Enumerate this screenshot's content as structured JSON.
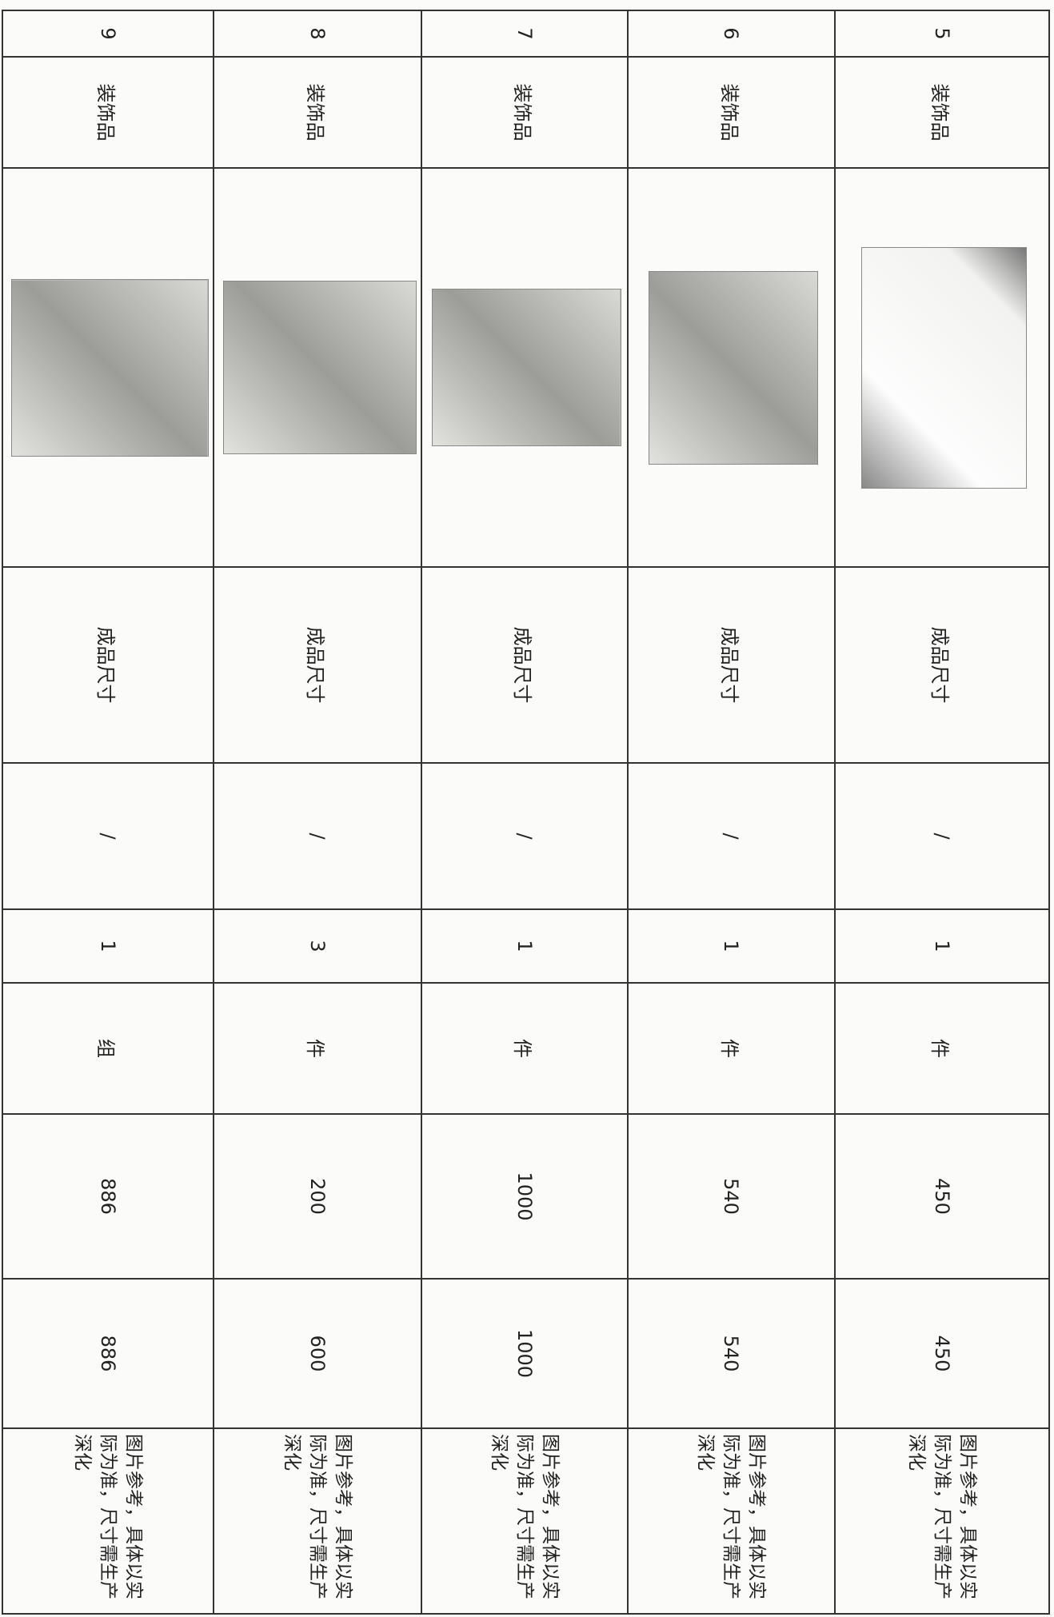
{
  "table": {
    "rows": [
      [
        5,
        "装饰品",
        "成品尺寸",
        "/",
        1,
        "件",
        450,
        450,
        "图片参考，具体以实际为准，尺寸需生产深化"
      ],
      [
        6,
        "装饰品",
        "成品尺寸",
        "/",
        1,
        "件",
        540,
        540,
        "图片参考，具体以实际为准，尺寸需生产深化"
      ],
      [
        7,
        "装饰品",
        "成品尺寸",
        "/",
        1,
        "件",
        1000,
        1000,
        "图片参考，具体以实际为准，尺寸需生产深化"
      ],
      [
        8,
        "装饰品",
        "成品尺寸",
        "/",
        3,
        "件",
        200,
        600,
        "图片参考，具体以实际为准，尺寸需生产深化"
      ],
      [
        9,
        "装饰品",
        "成品尺寸",
        "/",
        1,
        "组",
        886,
        886,
        "图片参考，具体以实际为准，尺寸需生产深化"
      ]
    ]
  }
}
